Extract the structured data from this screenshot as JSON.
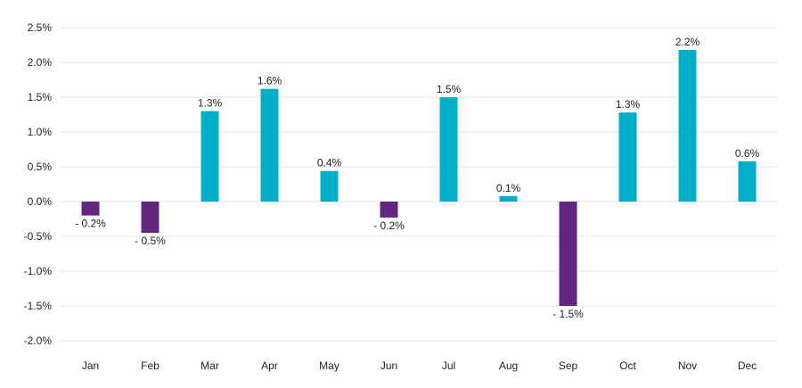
{
  "chart_data": {
    "type": "bar",
    "categories": [
      "Jan",
      "Feb",
      "Mar",
      "Apr",
      "May",
      "Jun",
      "Jul",
      "Aug",
      "Sep",
      "Oct",
      "Nov",
      "Dec"
    ],
    "values": [
      -0.2,
      -0.45,
      1.3,
      1.62,
      0.44,
      -0.23,
      1.5,
      0.08,
      -1.5,
      1.28,
      2.18,
      0.58
    ],
    "data_labels": [
      "- 0.2%",
      "- 0.5%",
      "1.3%",
      "1.6%",
      "0.4%",
      "- 0.2%",
      "1.5%",
      "0.1%",
      "- 1.5%",
      "1.3%",
      "2.2%",
      "0.6%"
    ],
    "y_ticks": [
      2.5,
      2.0,
      1.5,
      1.0,
      0.5,
      0.0,
      -0.5,
      -1.0,
      -1.5,
      -2.0
    ],
    "y_tick_labels": [
      "2.5%",
      "2.0%",
      "1.5%",
      "1.0%",
      "0.5%",
      "0.0%",
      "-0.5%",
      "-1.0%",
      "-1.5%",
      "-2.0%"
    ],
    "ylim": [
      -2.0,
      2.5
    ],
    "title": "",
    "xlabel": "",
    "ylabel": "",
    "grid": true,
    "colors": {
      "positive": "#00aec7",
      "negative": "#63277f",
      "grid": "#e4e4e4",
      "text": "#222222"
    }
  }
}
